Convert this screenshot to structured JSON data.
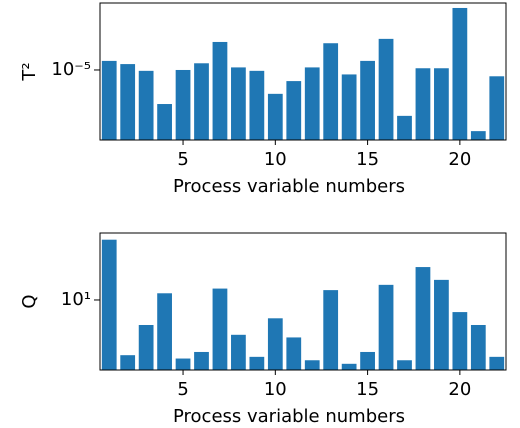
{
  "chart_data": [
    {
      "type": "bar",
      "log_y": true,
      "color": "#1f77b4",
      "x": [
        1,
        2,
        3,
        4,
        5,
        6,
        7,
        8,
        9,
        10,
        11,
        12,
        13,
        14,
        15,
        16,
        17,
        18,
        19,
        20,
        21,
        22
      ],
      "values": [
        1.11e-05,
        1.07e-05,
        9.9e-06,
        6.76e-06,
        1e-05,
        1.08e-05,
        1.38e-05,
        1.03e-05,
        9.9e-06,
        7.6e-06,
        8.8e-06,
        1.03e-05,
        1.36e-05,
        9.5e-06,
        1.11e-05,
        1.43e-05,
        5.9e-06,
        1.02e-05,
        1.02e-05,
        2.04e-05,
        4.95e-06,
        9.3e-06
      ],
      "xlim": [
        0.5,
        22.5
      ],
      "xticks": [
        5,
        10,
        15,
        20
      ],
      "ylim": [
        4.47e-06,
        2.16e-05
      ],
      "yticks": [
        {
          "value": 1e-05,
          "label": "10⁻⁵"
        }
      ],
      "xlabel": "Process variable numbers",
      "ylabel": "T²"
    },
    {
      "type": "bar",
      "log_y": true,
      "color": "#1f77b4",
      "x": [
        1,
        2,
        3,
        4,
        5,
        6,
        7,
        8,
        9,
        10,
        11,
        12,
        13,
        14,
        15,
        16,
        17,
        18,
        19,
        20,
        21,
        22
      ],
      "values": [
        20,
        5.3,
        7.5,
        10.8,
        5.1,
        5.5,
        11.4,
        6.7,
        5.2,
        8.1,
        6.5,
        5.0,
        11.2,
        4.8,
        5.5,
        11.9,
        5.0,
        14.6,
        12.6,
        8.7,
        7.5,
        5.2
      ],
      "xlim": [
        0.5,
        22.5
      ],
      "xticks": [
        5,
        10,
        15,
        20
      ],
      "ylim": [
        4.47,
        21.6
      ],
      "yticks": [
        {
          "value": 10,
          "label": "10¹"
        }
      ],
      "xlabel": "Process variable numbers",
      "ylabel": "Q"
    }
  ]
}
